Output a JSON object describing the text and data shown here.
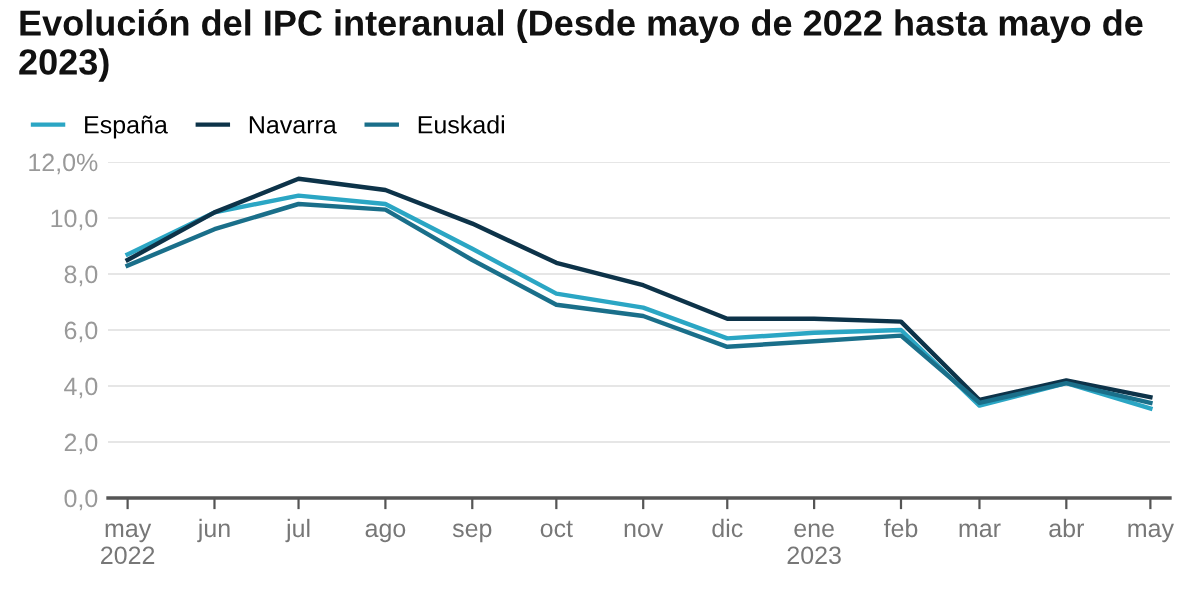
{
  "chart_data": {
    "type": "line",
    "title": "Evolución del IPC interanual (Desde mayo de 2022 hasta mayo de 2023)",
    "x": [
      "2022-05",
      "2022-06",
      "2022-07",
      "2022-08",
      "2022-09",
      "2022-10",
      "2022-11",
      "2022-12",
      "2023-01",
      "2023-02",
      "2023-03",
      "2023-04",
      "2023-05"
    ],
    "series": [
      {
        "name": "España",
        "color": "#2ba6c4",
        "values": [
          8.7,
          10.2,
          10.8,
          10.5,
          8.9,
          7.3,
          6.8,
          5.7,
          5.9,
          6.0,
          3.3,
          4.1,
          3.2
        ]
      },
      {
        "name": "Navarra",
        "color": "#0d3349",
        "values": [
          8.5,
          10.2,
          11.4,
          11.0,
          9.8,
          8.4,
          7.6,
          6.4,
          6.4,
          6.3,
          3.5,
          4.2,
          3.6
        ]
      },
      {
        "name": "Euskadi",
        "color": "#1a6f8a",
        "values": [
          8.3,
          9.6,
          10.5,
          10.3,
          8.5,
          6.9,
          6.5,
          5.4,
          5.6,
          5.8,
          3.4,
          4.1,
          3.4
        ]
      }
    ],
    "xlim": [
      "2022-04-24",
      "2023-05-08"
    ],
    "xticks": [
      {
        "value": "2022-05",
        "label": "may\n2022"
      },
      {
        "value": "2022-06",
        "label": "jun"
      },
      {
        "value": "2022-07",
        "label": "jul"
      },
      {
        "value": "2022-08",
        "label": "ago"
      },
      {
        "value": "2022-09",
        "label": "sep"
      },
      {
        "value": "2022-10",
        "label": "oct"
      },
      {
        "value": "2022-11",
        "label": "nov"
      },
      {
        "value": "2022-12",
        "label": "dic"
      },
      {
        "value": "2023-01",
        "label": "ene\n2023"
      },
      {
        "value": "2023-02",
        "label": "feb"
      },
      {
        "value": "2023-03",
        "label": "mar"
      },
      {
        "value": "2023-04",
        "label": "abr"
      },
      {
        "value": "2023-05",
        "label": "may"
      }
    ],
    "ylim": [
      0,
      12
    ],
    "yticks": [
      {
        "value": 0,
        "label": "0,0"
      },
      {
        "value": 2,
        "label": "2,0"
      },
      {
        "value": 4,
        "label": "4,0"
      },
      {
        "value": 6,
        "label": "6,0"
      },
      {
        "value": 8,
        "label": "8,0"
      },
      {
        "value": 10,
        "label": "10,0"
      },
      {
        "value": 12,
        "label": "12,0%"
      }
    ],
    "grid": "y",
    "legend": "top left",
    "marker": "none",
    "line_style": "solid"
  }
}
